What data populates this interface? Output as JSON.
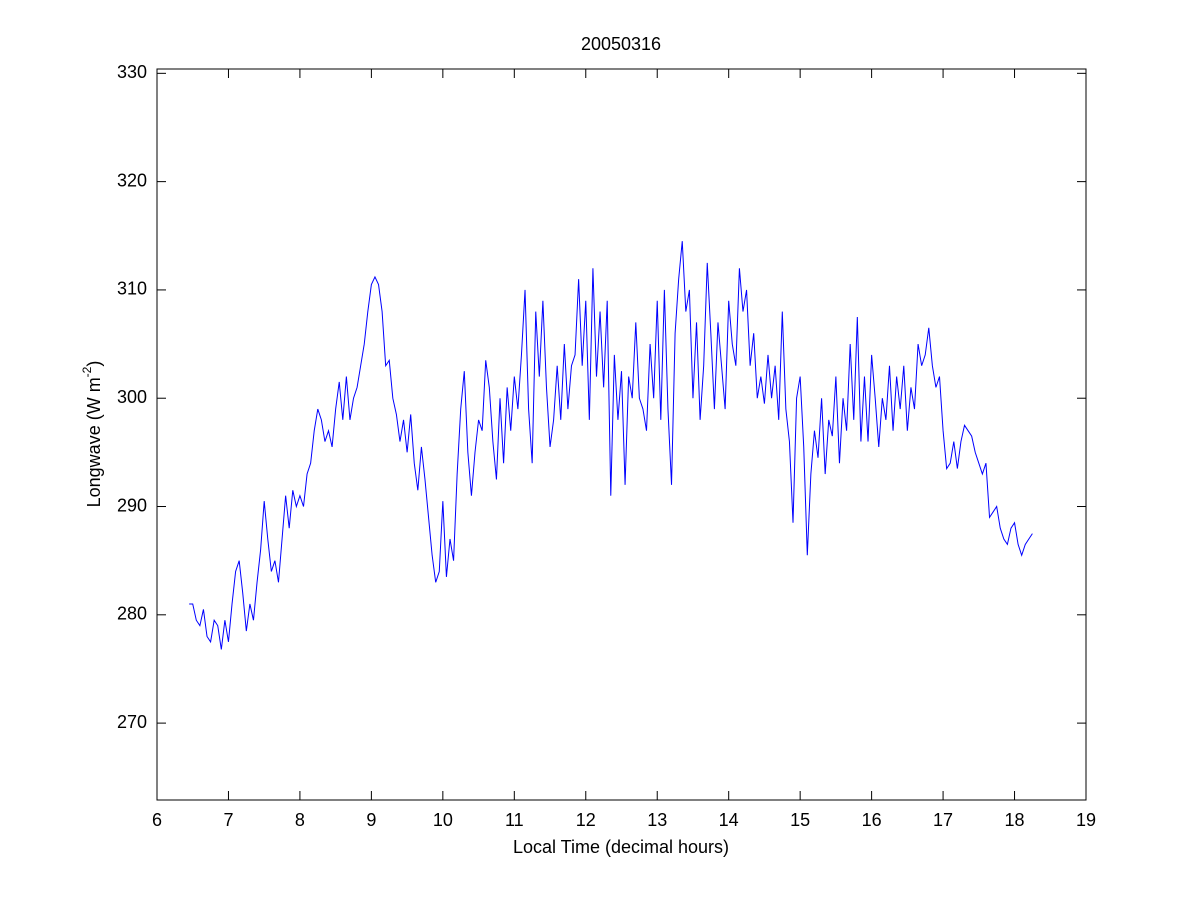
{
  "chart_data": {
    "type": "line",
    "title": "20050316",
    "xlabel": "Local Time (decimal hours)",
    "ylabel": [
      "Longwave (W m",
      "-2",
      ")"
    ],
    "color": "#0000ff",
    "xlim": [
      6,
      19
    ],
    "ylim": [
      262.9,
      330.4
    ],
    "xticks": [
      6,
      7,
      8,
      9,
      10,
      11,
      12,
      13,
      14,
      15,
      16,
      17,
      18,
      19
    ],
    "yticks": [
      270,
      280,
      290,
      300,
      310,
      320,
      330
    ],
    "grid": false,
    "x": [
      6.45,
      6.5,
      6.55,
      6.6,
      6.65,
      6.7,
      6.75,
      6.8,
      6.85,
      6.9,
      6.95,
      7.0,
      7.05,
      7.1,
      7.15,
      7.2,
      7.25,
      7.3,
      7.35,
      7.4,
      7.45,
      7.5,
      7.55,
      7.6,
      7.65,
      7.7,
      7.75,
      7.8,
      7.85,
      7.9,
      7.95,
      8.0,
      8.05,
      8.1,
      8.15,
      8.2,
      8.25,
      8.3,
      8.35,
      8.4,
      8.45,
      8.5,
      8.55,
      8.6,
      8.65,
      8.7,
      8.75,
      8.8,
      8.85,
      8.9,
      8.95,
      9.0,
      9.05,
      9.1,
      9.15,
      9.2,
      9.25,
      9.3,
      9.35,
      9.4,
      9.45,
      9.5,
      9.55,
      9.6,
      9.65,
      9.7,
      9.75,
      9.8,
      9.85,
      9.9,
      9.95,
      10.0,
      10.05,
      10.1,
      10.15,
      10.2,
      10.25,
      10.3,
      10.35,
      10.4,
      10.45,
      10.5,
      10.55,
      10.6,
      10.65,
      10.7,
      10.75,
      10.8,
      10.85,
      10.9,
      10.95,
      11.0,
      11.05,
      11.1,
      11.15,
      11.2,
      11.25,
      11.3,
      11.35,
      11.4,
      11.45,
      11.5,
      11.55,
      11.6,
      11.65,
      11.7,
      11.75,
      11.8,
      11.85,
      11.9,
      11.95,
      12.0,
      12.05,
      12.1,
      12.15,
      12.2,
      12.25,
      12.3,
      12.35,
      12.4,
      12.45,
      12.5,
      12.55,
      12.6,
      12.65,
      12.7,
      12.75,
      12.8,
      12.85,
      12.9,
      12.95,
      13.0,
      13.05,
      13.1,
      13.15,
      13.2,
      13.25,
      13.3,
      13.35,
      13.4,
      13.45,
      13.5,
      13.55,
      13.6,
      13.65,
      13.7,
      13.75,
      13.8,
      13.85,
      13.9,
      13.95,
      14.0,
      14.05,
      14.1,
      14.15,
      14.2,
      14.25,
      14.3,
      14.35,
      14.4,
      14.45,
      14.5,
      14.55,
      14.6,
      14.65,
      14.7,
      14.75,
      14.8,
      14.85,
      14.9,
      14.95,
      15.0,
      15.05,
      15.1,
      15.15,
      15.2,
      15.25,
      15.3,
      15.35,
      15.4,
      15.45,
      15.5,
      15.55,
      15.6,
      15.65,
      15.7,
      15.75,
      15.8,
      15.85,
      15.9,
      15.95,
      16.0,
      16.05,
      16.1,
      16.15,
      16.2,
      16.25,
      16.3,
      16.35,
      16.4,
      16.45,
      16.5,
      16.55,
      16.6,
      16.65,
      16.7,
      16.75,
      16.8,
      16.85,
      16.9,
      16.95,
      17.0,
      17.05,
      17.1,
      17.15,
      17.2,
      17.25,
      17.3,
      17.35,
      17.4,
      17.45,
      17.5,
      17.55,
      17.6,
      17.65,
      17.7,
      17.75,
      17.8,
      17.85,
      17.9,
      17.95,
      18.0,
      18.05,
      18.1,
      18.15,
      18.2,
      18.25
    ],
    "values": [
      281,
      281,
      279.5,
      279,
      280.5,
      278,
      277.5,
      279.5,
      279,
      276.8,
      279.5,
      277.5,
      281,
      284,
      285,
      282,
      278.5,
      281,
      279.5,
      283,
      286,
      290.5,
      287,
      284,
      285,
      283,
      287,
      291,
      288,
      291.5,
      290,
      291,
      290,
      293,
      294,
      297,
      299,
      298,
      296,
      297,
      295.5,
      299,
      301.5,
      298,
      302,
      298,
      300,
      301,
      303,
      305,
      308,
      310.5,
      311.2,
      310.5,
      308,
      303,
      303.5,
      300,
      298.5,
      296,
      298,
      295,
      298.5,
      294,
      291.5,
      295.5,
      292.5,
      289,
      285.5,
      283,
      284,
      290.5,
      283.5,
      287,
      285,
      293,
      299,
      302.5,
      295,
      291,
      295,
      298,
      297,
      303.5,
      301,
      296,
      292.5,
      300,
      294,
      301,
      297,
      302,
      299,
      304,
      310,
      299,
      294,
      308,
      302,
      309,
      301,
      295.5,
      298,
      303,
      298,
      305,
      299,
      303,
      304,
      311,
      303,
      309,
      298,
      312,
      302,
      308,
      301,
      309,
      291,
      304,
      298,
      302.5,
      292,
      302,
      300,
      307,
      300,
      299,
      297,
      305,
      300,
      309,
      298,
      310,
      299,
      292,
      306,
      311,
      314.5,
      308,
      310,
      300,
      307,
      298,
      303,
      312.5,
      306,
      299,
      307,
      303,
      299,
      309,
      305,
      303,
      312,
      308,
      310,
      303,
      306,
      300,
      302,
      299.5,
      304,
      300,
      303,
      298,
      308,
      299,
      296,
      288.5,
      300,
      302,
      295.5,
      285.5,
      293,
      297,
      294.5,
      300,
      293,
      298,
      296.5,
      302,
      294,
      300,
      297,
      305,
      298,
      307.5,
      296,
      302,
      296,
      304,
      300,
      295.5,
      300,
      298,
      303,
      297,
      302,
      299,
      303,
      297,
      301,
      299,
      305,
      303,
      304,
      306.5,
      303,
      301,
      302,
      297,
      293.5,
      294,
      296,
      293.5,
      296,
      297.5,
      297,
      296.5,
      295,
      294,
      293,
      294,
      289,
      289.5,
      290,
      288,
      287,
      286.5,
      288,
      288.5,
      286.5,
      285.5,
      286.5,
      287,
      287.5
    ]
  }
}
